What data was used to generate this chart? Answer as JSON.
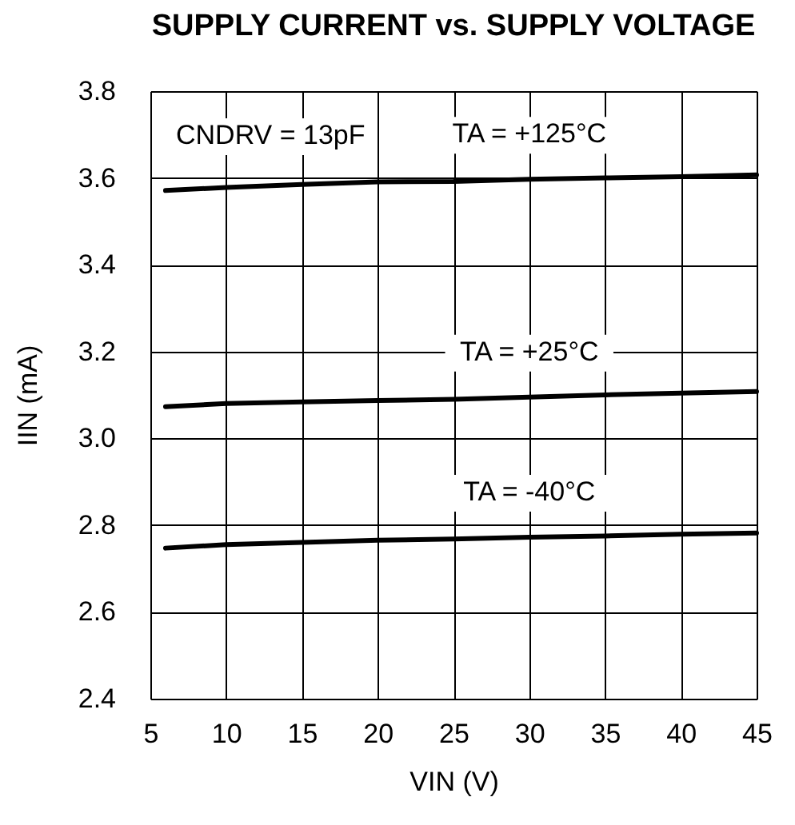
{
  "chart_data": {
    "type": "line",
    "title": "SUPPLY CURRENT vs. SUPPLY VOLTAGE",
    "xlabel": "VIN (V)",
    "ylabel": "IIN (mA)",
    "x": [
      6,
      10,
      15,
      20,
      25,
      30,
      35,
      40,
      45
    ],
    "series": [
      {
        "name": "TA = +125°C",
        "color": "#000000",
        "values": [
          3.571,
          3.578,
          3.585,
          3.591,
          3.592,
          3.597,
          3.6,
          3.603,
          3.607
        ]
      },
      {
        "name": "TA = +25°C",
        "color": "#000000",
        "values": [
          3.073,
          3.08,
          3.084,
          3.087,
          3.09,
          3.095,
          3.1,
          3.104,
          3.108
        ]
      },
      {
        "name": "TA = -40°C",
        "color": "#000000",
        "values": [
          2.747,
          2.755,
          2.76,
          2.765,
          2.768,
          2.772,
          2.775,
          2.779,
          2.782
        ]
      }
    ],
    "xlim": [
      5,
      45
    ],
    "xticks": [
      5,
      10,
      15,
      20,
      25,
      30,
      35,
      40,
      45
    ],
    "ylim": [
      2.4,
      3.8
    ],
    "yticks": [
      2.4,
      2.6,
      2.8,
      {
        "value": 3,
        "label": "3.0"
      },
      3.2,
      3.4,
      3.6,
      3.8
    ],
    "grid": true,
    "marker": "none",
    "line_style": "solid",
    "annotations": [
      "CNDRV = 13pF"
    ]
  }
}
